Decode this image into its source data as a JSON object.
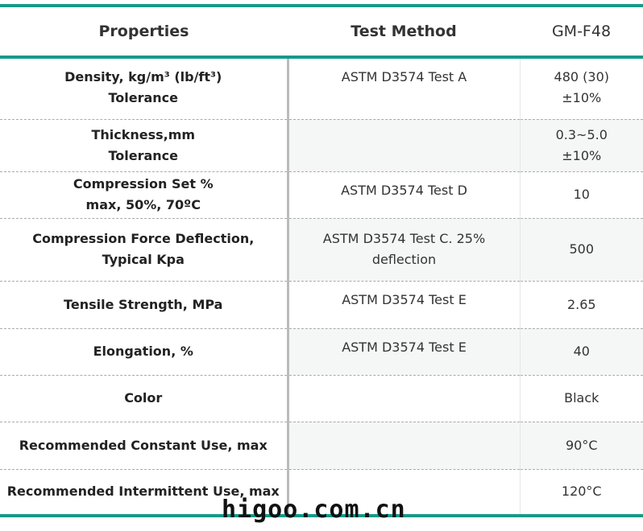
{
  "header": [
    "Properties",
    "Test Method",
    "GM-F48"
  ],
  "rows": [
    [
      "Density, kg/m³   (lb/ft³)\nTolerance",
      "ASTM D3574 Test A",
      "480 (30)\n±10%"
    ],
    [
      "Thickness,mm\nTolerance",
      null,
      "0.3~5.0\n±10%"
    ],
    [
      "Compression Set %\nmax,  50%, 70ºC",
      "ASTM D3574  Test D",
      "10"
    ],
    [
      "Compression Force Deflection,\nTypical Kpa",
      "ASTM D3574  Test C. 25%\ndeflection",
      "500"
    ],
    [
      "Tensile Strength, MPa",
      "ASTM D3574  Test E",
      "2.65"
    ],
    [
      "Elongation, %",
      "ASTM D3574  Test E",
      "40"
    ],
    [
      "Color",
      null,
      "Black"
    ],
    [
      "Recommended Constant Use, max",
      null,
      "90°C"
    ],
    [
      "Recommended Intermittent Use, max",
      null,
      "120°C"
    ]
  ],
  "watermark": "higoo.com.cn"
}
